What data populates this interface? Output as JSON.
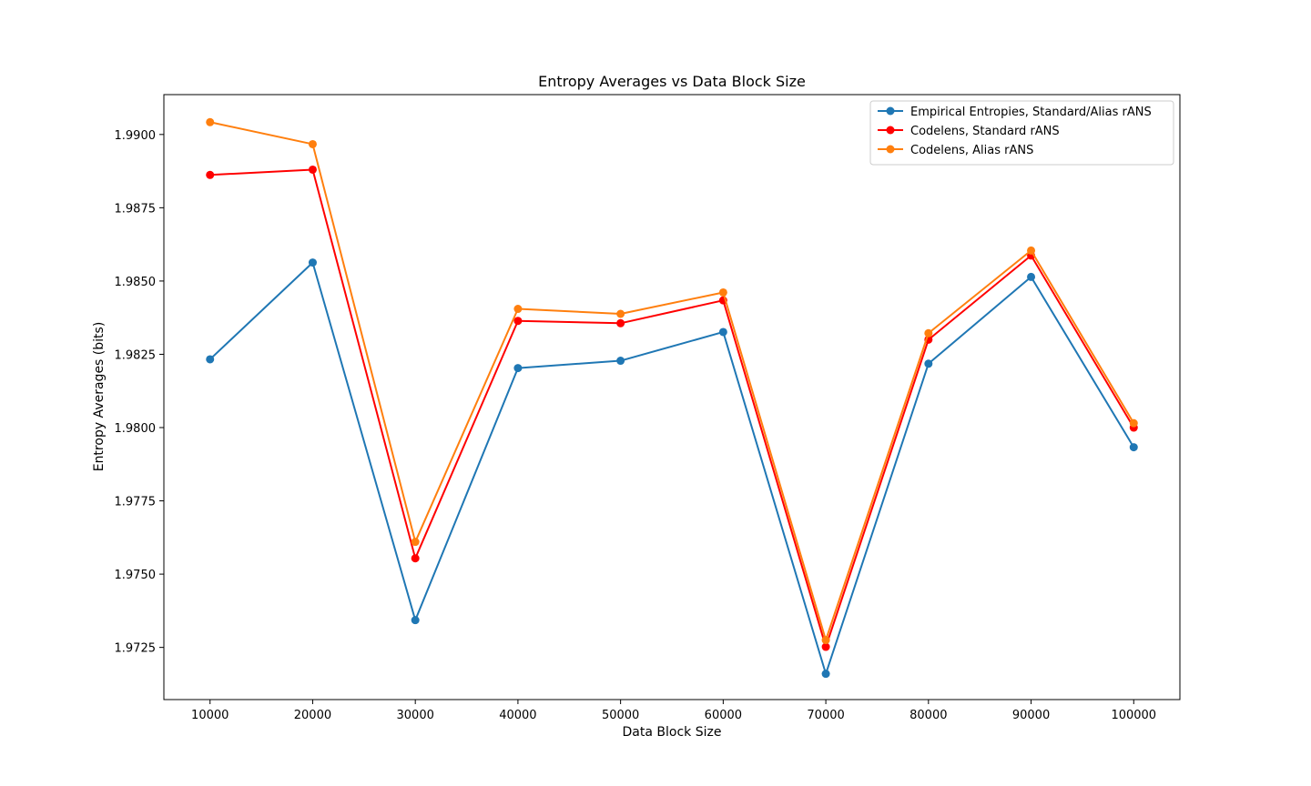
{
  "chart_data": {
    "type": "line",
    "title": "Entropy Averages vs Data Block Size",
    "xlabel": "Data Block Size",
    "ylabel": "Entropy Averages (bits)",
    "x": [
      10000,
      20000,
      30000,
      40000,
      50000,
      60000,
      70000,
      80000,
      90000,
      100000
    ],
    "x_ticks": [
      "10000",
      "20000",
      "30000",
      "40000",
      "50000",
      "60000",
      "70000",
      "80000",
      "90000",
      "100000"
    ],
    "y_ticks": [
      "1.9725",
      "1.9750",
      "1.9775",
      "1.9800",
      "1.9825",
      "1.9850",
      "1.9875",
      "1.9900"
    ],
    "xlim": [
      5500,
      104500
    ],
    "ylim": [
      1.97072,
      1.99136
    ],
    "grid": false,
    "legend_position": "top-right",
    "series": [
      {
        "name": "Empirical Entropies, Standard/Alias rANS",
        "color": "#1f77b4",
        "values": [
          1.98233,
          1.98563,
          1.97343,
          1.98203,
          1.98228,
          1.98326,
          1.9716,
          1.98218,
          1.98514,
          1.97933
        ]
      },
      {
        "name": "Codelens, Standard rANS",
        "color": "#ff0000",
        "values": [
          1.98862,
          1.9888,
          1.97554,
          1.98364,
          1.98356,
          1.98434,
          1.97252,
          1.983,
          1.98587,
          1.98
        ]
      },
      {
        "name": "Codelens, Alias rANS",
        "color": "#ff7f0e",
        "values": [
          1.99042,
          1.98967,
          1.9761,
          1.98405,
          1.98388,
          1.98461,
          1.97275,
          1.98322,
          1.98604,
          1.98015
        ]
      }
    ]
  }
}
